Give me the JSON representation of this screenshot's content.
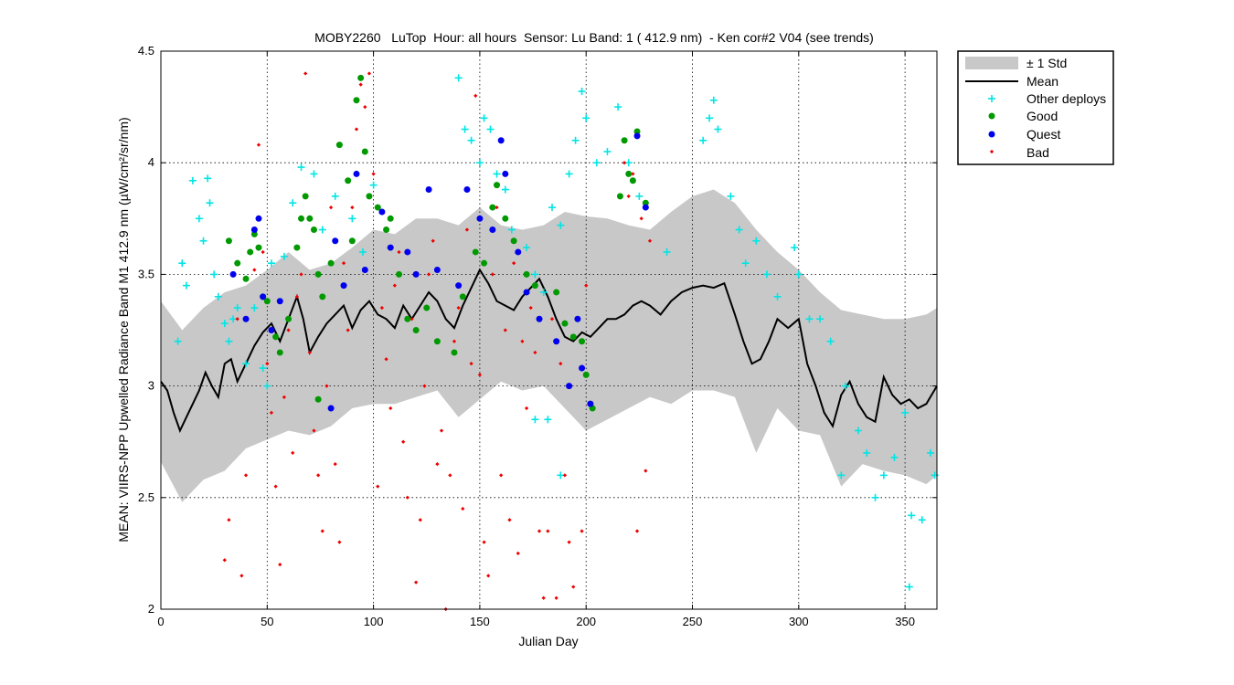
{
  "chart_data": {
    "type": "scatter",
    "title": "MOBY2260   LuTop  Hour: all hours  Sensor: Lu Band: 1 ( 412.9 nm)  - Ken cor#2 V04 (see trends)",
    "xlabel": "Julian Day",
    "ylabel": "MEAN: VIIRS-NPP Upwelled Radiance Band M1 412.9 nm (µW/cm²/sr/nm)",
    "xlim": [
      0,
      365
    ],
    "ylim": [
      2,
      4.5
    ],
    "xticks": [
      0,
      50,
      100,
      150,
      200,
      250,
      300,
      350
    ],
    "yticks": [
      2,
      2.5,
      3,
      3.5,
      4,
      4.5
    ],
    "xtick_labels": [
      "0",
      "50",
      "100",
      "150",
      "200",
      "250",
      "300",
      "350"
    ],
    "ytick_labels": [
      "2",
      "2.5",
      "3",
      "3.5",
      "4",
      "4.5"
    ],
    "grid": true,
    "legend_position": "outside-top-right",
    "legend": [
      "± 1 Std",
      "Mean",
      "Other deploys",
      "Good",
      "Quest",
      "Bad"
    ],
    "colors": {
      "std_band": "#c8c8c8",
      "mean": "#000000",
      "other": "#00e5e5",
      "good": "#009900",
      "quest": "#0000ee",
      "bad": "#ee0000"
    },
    "series": {
      "mean": {
        "x": [
          0,
          3,
          6,
          9,
          12,
          15,
          18,
          21,
          24,
          27,
          30,
          33,
          36,
          40,
          44,
          48,
          52,
          56,
          60,
          64,
          67,
          70,
          74,
          78,
          82,
          86,
          90,
          94,
          98,
          102,
          106,
          110,
          114,
          118,
          122,
          126,
          130,
          134,
          138,
          142,
          146,
          150,
          154,
          158,
          162,
          166,
          170,
          174,
          178,
          182,
          186,
          190,
          194,
          198,
          202,
          206,
          210,
          214,
          218,
          222,
          226,
          230,
          235,
          240,
          245,
          250,
          255,
          260,
          265,
          270,
          274,
          278,
          282,
          286,
          290,
          295,
          300,
          304,
          308,
          312,
          316,
          320,
          324,
          328,
          332,
          336,
          340,
          344,
          348,
          352,
          356,
          360,
          365
        ],
        "y": [
          3.02,
          2.98,
          2.88,
          2.8,
          2.86,
          2.92,
          2.98,
          3.06,
          3.0,
          2.95,
          3.1,
          3.12,
          3.02,
          3.1,
          3.18,
          3.24,
          3.28,
          3.2,
          3.3,
          3.4,
          3.3,
          3.15,
          3.22,
          3.28,
          3.32,
          3.36,
          3.26,
          3.34,
          3.38,
          3.32,
          3.3,
          3.26,
          3.36,
          3.3,
          3.36,
          3.42,
          3.38,
          3.3,
          3.26,
          3.36,
          3.44,
          3.52,
          3.46,
          3.38,
          3.36,
          3.34,
          3.4,
          3.44,
          3.48,
          3.4,
          3.3,
          3.22,
          3.2,
          3.24,
          3.22,
          3.26,
          3.3,
          3.3,
          3.32,
          3.36,
          3.38,
          3.36,
          3.32,
          3.38,
          3.42,
          3.44,
          3.45,
          3.44,
          3.46,
          3.32,
          3.2,
          3.1,
          3.12,
          3.2,
          3.3,
          3.26,
          3.3,
          3.1,
          3.0,
          2.88,
          2.82,
          2.96,
          3.02,
          2.92,
          2.86,
          2.84,
          3.04,
          2.96,
          2.92,
          2.94,
          2.9,
          2.92,
          3.0
        ]
      },
      "std": {
        "x": [
          0,
          10,
          20,
          30,
          40,
          50,
          60,
          70,
          80,
          90,
          100,
          110,
          120,
          130,
          140,
          150,
          160,
          170,
          180,
          190,
          200,
          210,
          220,
          230,
          240,
          250,
          260,
          270,
          280,
          290,
          300,
          310,
          320,
          330,
          340,
          350,
          360,
          365
        ],
        "upper": [
          3.38,
          3.25,
          3.35,
          3.42,
          3.45,
          3.52,
          3.6,
          3.52,
          3.55,
          3.62,
          3.7,
          3.68,
          3.75,
          3.75,
          3.72,
          3.8,
          3.72,
          3.7,
          3.72,
          3.78,
          3.76,
          3.75,
          3.72,
          3.7,
          3.78,
          3.85,
          3.88,
          3.82,
          3.7,
          3.6,
          3.52,
          3.42,
          3.34,
          3.32,
          3.3,
          3.3,
          3.32,
          3.35
        ],
        "lower": [
          2.66,
          2.48,
          2.58,
          2.62,
          2.72,
          2.76,
          2.8,
          2.78,
          2.82,
          2.9,
          2.92,
          2.92,
          2.95,
          2.98,
          2.86,
          2.94,
          3.02,
          2.98,
          3.0,
          2.9,
          2.8,
          2.85,
          2.9,
          2.95,
          2.92,
          2.98,
          2.98,
          2.95,
          2.7,
          2.9,
          2.8,
          2.78,
          2.55,
          2.65,
          2.62,
          2.6,
          2.56,
          2.6
        ]
      },
      "other": [
        [
          8,
          3.2
        ],
        [
          10,
          3.55
        ],
        [
          12,
          3.45
        ],
        [
          15,
          3.92
        ],
        [
          18,
          3.75
        ],
        [
          20,
          3.65
        ],
        [
          22,
          3.93
        ],
        [
          23,
          3.82
        ],
        [
          25,
          3.5
        ],
        [
          27,
          3.4
        ],
        [
          30,
          3.28
        ],
        [
          32,
          3.2
        ],
        [
          34,
          3.3
        ],
        [
          36,
          3.35
        ],
        [
          40,
          3.1
        ],
        [
          44,
          3.35
        ],
        [
          48,
          3.08
        ],
        [
          50,
          3.0
        ],
        [
          52,
          3.55
        ],
        [
          58,
          3.58
        ],
        [
          62,
          3.82
        ],
        [
          66,
          3.98
        ],
        [
          72,
          3.95
        ],
        [
          76,
          3.7
        ],
        [
          82,
          3.85
        ],
        [
          90,
          3.75
        ],
        [
          95,
          3.6
        ],
        [
          100,
          3.9
        ],
        [
          140,
          4.38
        ],
        [
          143,
          4.15
        ],
        [
          146,
          4.1
        ],
        [
          150,
          4.0
        ],
        [
          152,
          4.2
        ],
        [
          155,
          4.15
        ],
        [
          158,
          3.95
        ],
        [
          162,
          3.88
        ],
        [
          165,
          3.7
        ],
        [
          172,
          3.62
        ],
        [
          176,
          3.5
        ],
        [
          180,
          3.42
        ],
        [
          184,
          3.8
        ],
        [
          188,
          3.72
        ],
        [
          192,
          3.95
        ],
        [
          195,
          4.1
        ],
        [
          198,
          4.32
        ],
        [
          200,
          4.2
        ],
        [
          205,
          4.0
        ],
        [
          210,
          4.05
        ],
        [
          215,
          4.25
        ],
        [
          220,
          4.0
        ],
        [
          225,
          3.85
        ],
        [
          238,
          3.6
        ],
        [
          255,
          4.1
        ],
        [
          258,
          4.2
        ],
        [
          260,
          4.28
        ],
        [
          262,
          4.15
        ],
        [
          268,
          3.85
        ],
        [
          272,
          3.7
        ],
        [
          275,
          3.55
        ],
        [
          280,
          3.65
        ],
        [
          285,
          3.5
        ],
        [
          290,
          3.4
        ],
        [
          298,
          3.62
        ],
        [
          300,
          3.5
        ],
        [
          305,
          3.3
        ],
        [
          310,
          3.3
        ],
        [
          315,
          3.2
        ],
        [
          322,
          3.0
        ],
        [
          328,
          2.8
        ],
        [
          332,
          2.7
        ],
        [
          336,
          2.5
        ],
        [
          340,
          2.6
        ],
        [
          345,
          2.68
        ],
        [
          350,
          2.88
        ],
        [
          353,
          2.42
        ],
        [
          358,
          2.4
        ],
        [
          362,
          2.7
        ],
        [
          364,
          2.6
        ],
        [
          352,
          2.1
        ],
        [
          320,
          2.6
        ],
        [
          176,
          2.85
        ],
        [
          182,
          2.85
        ],
        [
          188,
          2.6
        ]
      ],
      "good": [
        [
          32,
          3.65
        ],
        [
          36,
          3.55
        ],
        [
          40,
          3.48
        ],
        [
          42,
          3.6
        ],
        [
          44,
          3.68
        ],
        [
          46,
          3.62
        ],
        [
          48,
          3.4
        ],
        [
          50,
          3.38
        ],
        [
          54,
          3.22
        ],
        [
          56,
          3.15
        ],
        [
          60,
          3.3
        ],
        [
          64,
          3.62
        ],
        [
          66,
          3.75
        ],
        [
          68,
          3.85
        ],
        [
          70,
          3.75
        ],
        [
          72,
          3.7
        ],
        [
          74,
          3.5
        ],
        [
          76,
          3.4
        ],
        [
          80,
          3.55
        ],
        [
          84,
          4.08
        ],
        [
          88,
          3.92
        ],
        [
          90,
          3.65
        ],
        [
          92,
          4.28
        ],
        [
          94,
          4.38
        ],
        [
          96,
          4.05
        ],
        [
          98,
          3.85
        ],
        [
          102,
          3.8
        ],
        [
          106,
          3.7
        ],
        [
          108,
          3.75
        ],
        [
          112,
          3.5
        ],
        [
          116,
          3.3
        ],
        [
          120,
          3.25
        ],
        [
          125,
          3.35
        ],
        [
          130,
          3.2
        ],
        [
          138,
          3.15
        ],
        [
          142,
          3.4
        ],
        [
          148,
          3.6
        ],
        [
          152,
          3.55
        ],
        [
          156,
          3.8
        ],
        [
          158,
          3.9
        ],
        [
          162,
          3.75
        ],
        [
          166,
          3.65
        ],
        [
          172,
          3.5
        ],
        [
          176,
          3.45
        ],
        [
          186,
          3.42
        ],
        [
          190,
          3.28
        ],
        [
          194,
          3.22
        ],
        [
          198,
          3.2
        ],
        [
          200,
          3.05
        ],
        [
          203,
          2.9
        ],
        [
          216,
          3.85
        ],
        [
          218,
          4.1
        ],
        [
          220,
          3.95
        ],
        [
          222,
          3.92
        ],
        [
          224,
          4.14
        ],
        [
          228,
          3.82
        ],
        [
          74,
          2.94
        ]
      ],
      "quest": [
        [
          34,
          3.5
        ],
        [
          40,
          3.3
        ],
        [
          44,
          3.7
        ],
        [
          46,
          3.75
        ],
        [
          48,
          3.4
        ],
        [
          52,
          3.25
        ],
        [
          56,
          3.38
        ],
        [
          82,
          3.65
        ],
        [
          86,
          3.45
        ],
        [
          92,
          3.95
        ],
        [
          96,
          3.52
        ],
        [
          104,
          3.78
        ],
        [
          108,
          3.62
        ],
        [
          116,
          3.6
        ],
        [
          120,
          3.5
        ],
        [
          126,
          3.88
        ],
        [
          130,
          3.52
        ],
        [
          140,
          3.45
        ],
        [
          144,
          3.88
        ],
        [
          150,
          3.75
        ],
        [
          156,
          3.7
        ],
        [
          160,
          4.1
        ],
        [
          162,
          3.95
        ],
        [
          168,
          3.6
        ],
        [
          172,
          3.42
        ],
        [
          178,
          3.3
        ],
        [
          186,
          3.2
        ],
        [
          192,
          3.0
        ],
        [
          196,
          3.3
        ],
        [
          198,
          3.08
        ],
        [
          202,
          2.92
        ],
        [
          224,
          4.12
        ],
        [
          228,
          3.8
        ],
        [
          80,
          2.9
        ]
      ],
      "bad": [
        [
          30,
          2.22
        ],
        [
          32,
          2.4
        ],
        [
          36,
          3.3
        ],
        [
          38,
          2.15
        ],
        [
          40,
          2.6
        ],
        [
          44,
          3.52
        ],
        [
          46,
          4.08
        ],
        [
          48,
          3.6
        ],
        [
          50,
          3.1
        ],
        [
          52,
          2.88
        ],
        [
          54,
          2.55
        ],
        [
          56,
          2.2
        ],
        [
          58,
          2.95
        ],
        [
          60,
          3.25
        ],
        [
          62,
          2.7
        ],
        [
          64,
          3.4
        ],
        [
          66,
          3.5
        ],
        [
          68,
          4.4
        ],
        [
          70,
          3.15
        ],
        [
          72,
          2.8
        ],
        [
          74,
          2.6
        ],
        [
          76,
          2.35
        ],
        [
          78,
          3.0
        ],
        [
          80,
          3.8
        ],
        [
          82,
          2.65
        ],
        [
          84,
          2.3
        ],
        [
          86,
          3.55
        ],
        [
          88,
          3.25
        ],
        [
          90,
          3.8
        ],
        [
          92,
          4.15
        ],
        [
          94,
          4.35
        ],
        [
          96,
          4.25
        ],
        [
          98,
          4.4
        ],
        [
          100,
          3.95
        ],
        [
          102,
          2.55
        ],
        [
          104,
          3.35
        ],
        [
          106,
          3.12
        ],
        [
          108,
          2.9
        ],
        [
          110,
          3.45
        ],
        [
          112,
          3.6
        ],
        [
          114,
          2.75
        ],
        [
          116,
          2.5
        ],
        [
          118,
          3.3
        ],
        [
          120,
          2.12
        ],
        [
          122,
          2.4
        ],
        [
          124,
          3.0
        ],
        [
          126,
          3.5
        ],
        [
          128,
          3.65
        ],
        [
          130,
          2.65
        ],
        [
          132,
          2.8
        ],
        [
          134,
          2.0
        ],
        [
          136,
          2.6
        ],
        [
          138,
          3.2
        ],
        [
          140,
          3.35
        ],
        [
          142,
          2.45
        ],
        [
          144,
          3.7
        ],
        [
          146,
          3.1
        ],
        [
          148,
          4.3
        ],
        [
          150,
          3.05
        ],
        [
          152,
          2.3
        ],
        [
          154,
          2.15
        ],
        [
          156,
          3.5
        ],
        [
          158,
          3.8
        ],
        [
          160,
          2.6
        ],
        [
          162,
          3.25
        ],
        [
          164,
          2.4
        ],
        [
          166,
          3.55
        ],
        [
          168,
          2.25
        ],
        [
          170,
          3.2
        ],
        [
          172,
          2.9
        ],
        [
          174,
          3.35
        ],
        [
          176,
          3.15
        ],
        [
          178,
          2.35
        ],
        [
          180,
          2.05
        ],
        [
          182,
          2.35
        ],
        [
          184,
          3.3
        ],
        [
          186,
          2.05
        ],
        [
          188,
          3.1
        ],
        [
          190,
          2.6
        ],
        [
          192,
          2.3
        ],
        [
          194,
          2.1
        ],
        [
          196,
          3.3
        ],
        [
          198,
          2.35
        ],
        [
          200,
          3.45
        ],
        [
          218,
          4.0
        ],
        [
          220,
          3.85
        ],
        [
          222,
          3.95
        ],
        [
          224,
          2.35
        ],
        [
          226,
          3.75
        ],
        [
          228,
          2.62
        ],
        [
          230,
          3.65
        ]
      ]
    }
  }
}
